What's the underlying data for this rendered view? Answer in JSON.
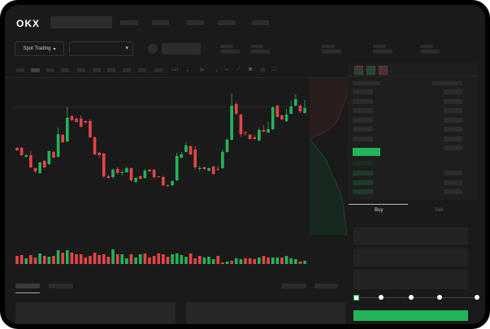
{
  "header": {
    "logo": "OKX"
  },
  "toolbar": {
    "market_selector_label": "Spot Trading",
    "chevron": "▾"
  },
  "order_form": {
    "tabs": [
      {
        "label": "Buy",
        "active": true
      },
      {
        "label": "Sell",
        "active": false
      }
    ],
    "slider_percent": 0,
    "accent": "#22b559"
  },
  "colors": {
    "up": "#22b559",
    "down": "#e5454a",
    "background": "#1a1a1a"
  },
  "chart_data": {
    "type": "candlestick",
    "candles": [
      [
        68,
        69,
        64,
        65
      ],
      [
        68,
        69,
        58,
        59
      ],
      [
        57,
        60,
        56,
        59
      ],
      [
        59,
        64,
        43,
        44
      ],
      [
        43,
        44,
        37,
        39
      ],
      [
        37,
        51,
        36,
        50
      ],
      [
        52,
        53,
        43,
        44
      ],
      [
        48,
        65,
        47,
        64
      ],
      [
        63,
        64,
        55,
        56
      ],
      [
        57,
        93,
        56,
        85
      ],
      [
        84,
        85,
        74,
        75
      ],
      [
        76,
        118,
        75,
        105
      ],
      [
        107,
        108,
        101,
        102
      ],
      [
        104,
        105,
        99,
        100
      ],
      [
        104,
        108,
        93,
        94
      ],
      [
        101,
        102,
        98,
        99
      ],
      [
        101,
        103,
        80,
        81
      ],
      [
        81,
        82,
        59,
        60
      ],
      [
        62,
        63,
        56,
        59
      ],
      [
        61,
        62,
        31,
        33
      ],
      [
        33,
        35,
        30,
        31
      ],
      [
        32,
        43,
        30,
        41
      ],
      [
        42,
        44,
        35,
        37
      ],
      [
        37,
        41,
        34,
        38
      ],
      [
        38,
        45,
        37,
        43
      ],
      [
        43,
        44,
        26,
        28
      ],
      [
        26,
        32,
        25,
        31
      ],
      [
        33,
        34,
        29,
        30
      ],
      [
        31,
        42,
        30,
        40
      ],
      [
        41,
        42,
        38,
        39
      ],
      [
        41,
        42,
        30,
        32
      ],
      [
        33,
        33,
        31,
        32
      ],
      [
        32,
        34,
        21,
        22
      ],
      [
        22,
        23,
        20,
        21
      ],
      [
        22,
        28,
        21,
        27
      ],
      [
        28,
        62,
        27,
        58
      ],
      [
        56,
        63,
        55,
        60
      ],
      [
        63,
        75,
        62,
        71
      ],
      [
        70,
        71,
        59,
        60
      ],
      [
        66,
        70,
        41,
        44
      ],
      [
        42,
        46,
        39,
        43
      ],
      [
        44,
        45,
        41,
        42
      ],
      [
        40,
        44,
        39,
        43
      ],
      [
        45,
        46,
        35,
        36
      ],
      [
        42,
        46,
        40,
        41
      ],
      [
        43,
        66,
        42,
        63
      ],
      [
        63,
        80,
        62,
        78
      ],
      [
        78,
        135,
        77,
        120
      ],
      [
        122,
        124,
        108,
        110
      ],
      [
        109,
        110,
        82,
        85
      ],
      [
        87,
        89,
        83,
        86
      ],
      [
        84,
        85,
        78,
        79
      ],
      [
        81,
        84,
        78,
        79
      ],
      [
        77,
        93,
        76,
        90
      ],
      [
        90,
        96,
        87,
        88
      ],
      [
        87,
        100,
        86,
        91
      ],
      [
        91,
        119,
        90,
        118
      ],
      [
        120,
        121,
        105,
        106
      ],
      [
        108,
        109,
        102,
        103
      ],
      [
        101,
        116,
        100,
        109
      ],
      [
        110,
        126,
        109,
        119
      ],
      [
        120,
        134,
        119,
        128
      ],
      [
        120,
        121,
        111,
        113
      ],
      [
        111,
        127,
        110,
        117
      ]
    ],
    "candle_fields": [
      "open",
      "high",
      "low",
      "close"
    ],
    "volumes": [
      10,
      11,
      7,
      11,
      8,
      13,
      10,
      9,
      10,
      17,
      14,
      17,
      14,
      12,
      12,
      8,
      10,
      14,
      11,
      12,
      9,
      18,
      12,
      12,
      7,
      12,
      8,
      12,
      13,
      8,
      10,
      13,
      12,
      9,
      12,
      13,
      11,
      9,
      13,
      7,
      10,
      8,
      9,
      6,
      10,
      2,
      3,
      4,
      7,
      6,
      7,
      7,
      6,
      8,
      10,
      8,
      8,
      8,
      8,
      10,
      7,
      6,
      3,
      4
    ],
    "volume_up": [
      0,
      0,
      1,
      0,
      0,
      1,
      0,
      1,
      0,
      1,
      0,
      1,
      0,
      0,
      0,
      0,
      0,
      0,
      0,
      0,
      0,
      1,
      0,
      1,
      1,
      0,
      1,
      1,
      0,
      0,
      0,
      0,
      0,
      0,
      1,
      1,
      1,
      1,
      0,
      0,
      0,
      1,
      1,
      1,
      0,
      0,
      1,
      0,
      1,
      1,
      0,
      0,
      0,
      1,
      0,
      0,
      1,
      1,
      0,
      1,
      1,
      1,
      0,
      1
    ],
    "grid": false
  }
}
